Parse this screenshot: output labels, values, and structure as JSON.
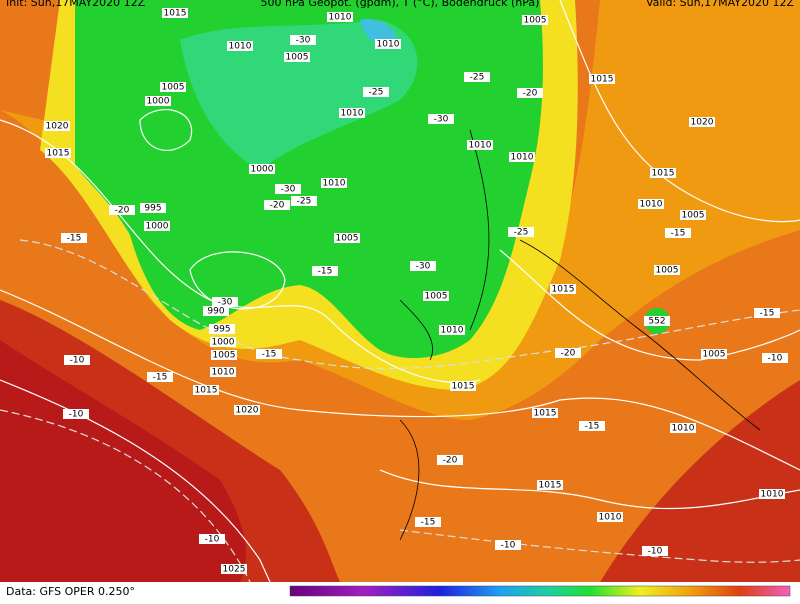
{
  "header": {
    "init": "Init: Sun,17MAY2020 12Z",
    "title": "500 hPa Geopot. (gpdm), T (°C), Bodendruck (hPa)",
    "valid": "Valid: Sun,17MAY2020 12Z"
  },
  "footer": {
    "source": "Data: GFS OPER 0.250°"
  },
  "isobar_labels": [
    "1015",
    "1010",
    "1005",
    "1010",
    "1010",
    "1005",
    "1005",
    "1000",
    "1020",
    "1015",
    "1010",
    "1010",
    "1010",
    "1020",
    "1015",
    "1000",
    "1010",
    "1015",
    "1010",
    "995",
    "1005",
    "1000",
    "1005",
    "1005",
    "1015",
    "1005",
    "990",
    "995",
    "1000",
    "1010",
    "1005",
    "1010",
    "1005",
    "1015",
    "1015",
    "1020",
    "1015",
    "1010",
    "1015",
    "1010",
    "1010",
    "1025"
  ],
  "temperature_labels": [
    "-30",
    "-25",
    "-25",
    "-20",
    "-30",
    "-30",
    "-20",
    "-25",
    "-20",
    "-15",
    "-25",
    "-15",
    "-30",
    "-30",
    "-15",
    "-20",
    "-15",
    "-10",
    "-10",
    "-20",
    "-15",
    "-15",
    "-10",
    "-15",
    "-10",
    "-10",
    "-10",
    "-15"
  ],
  "geopotential_labels": [
    "552"
  ]
}
